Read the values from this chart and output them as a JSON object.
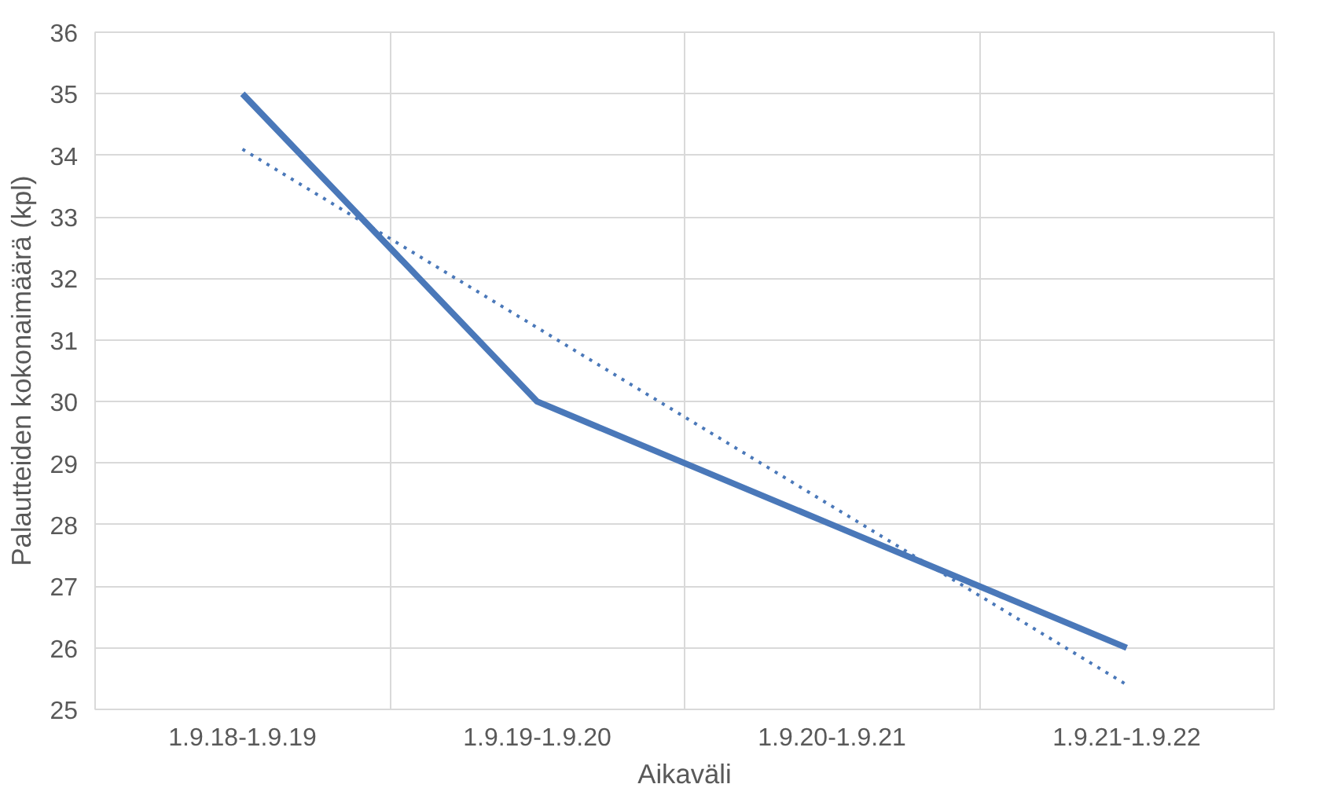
{
  "chart_data": {
    "type": "line",
    "xlabel": "Aikaväli",
    "ylabel": "Palautteiden kokonaimäärä (kpl)",
    "categories": [
      "1.9.18-1.9.19",
      "1.9.19-1.9.20",
      "1.9.20-1.9.21",
      "1.9.21-1.9.22"
    ],
    "series": [
      {
        "color": "#4a78b9",
        "values": [
          35,
          30,
          28,
          26
        ],
        "line_style": "solid"
      },
      {
        "type": "line",
        "color": "#4a78b9",
        "values": [
          34.1,
          31.2,
          28.3,
          25.4
        ],
        "line_style": "dotted"
      }
    ],
    "ylim": [
      25,
      36
    ],
    "yticks": [
      25,
      26,
      27,
      28,
      29,
      30,
      31,
      32,
      33,
      34,
      35,
      36
    ],
    "grid": true,
    "marker": "none"
  }
}
